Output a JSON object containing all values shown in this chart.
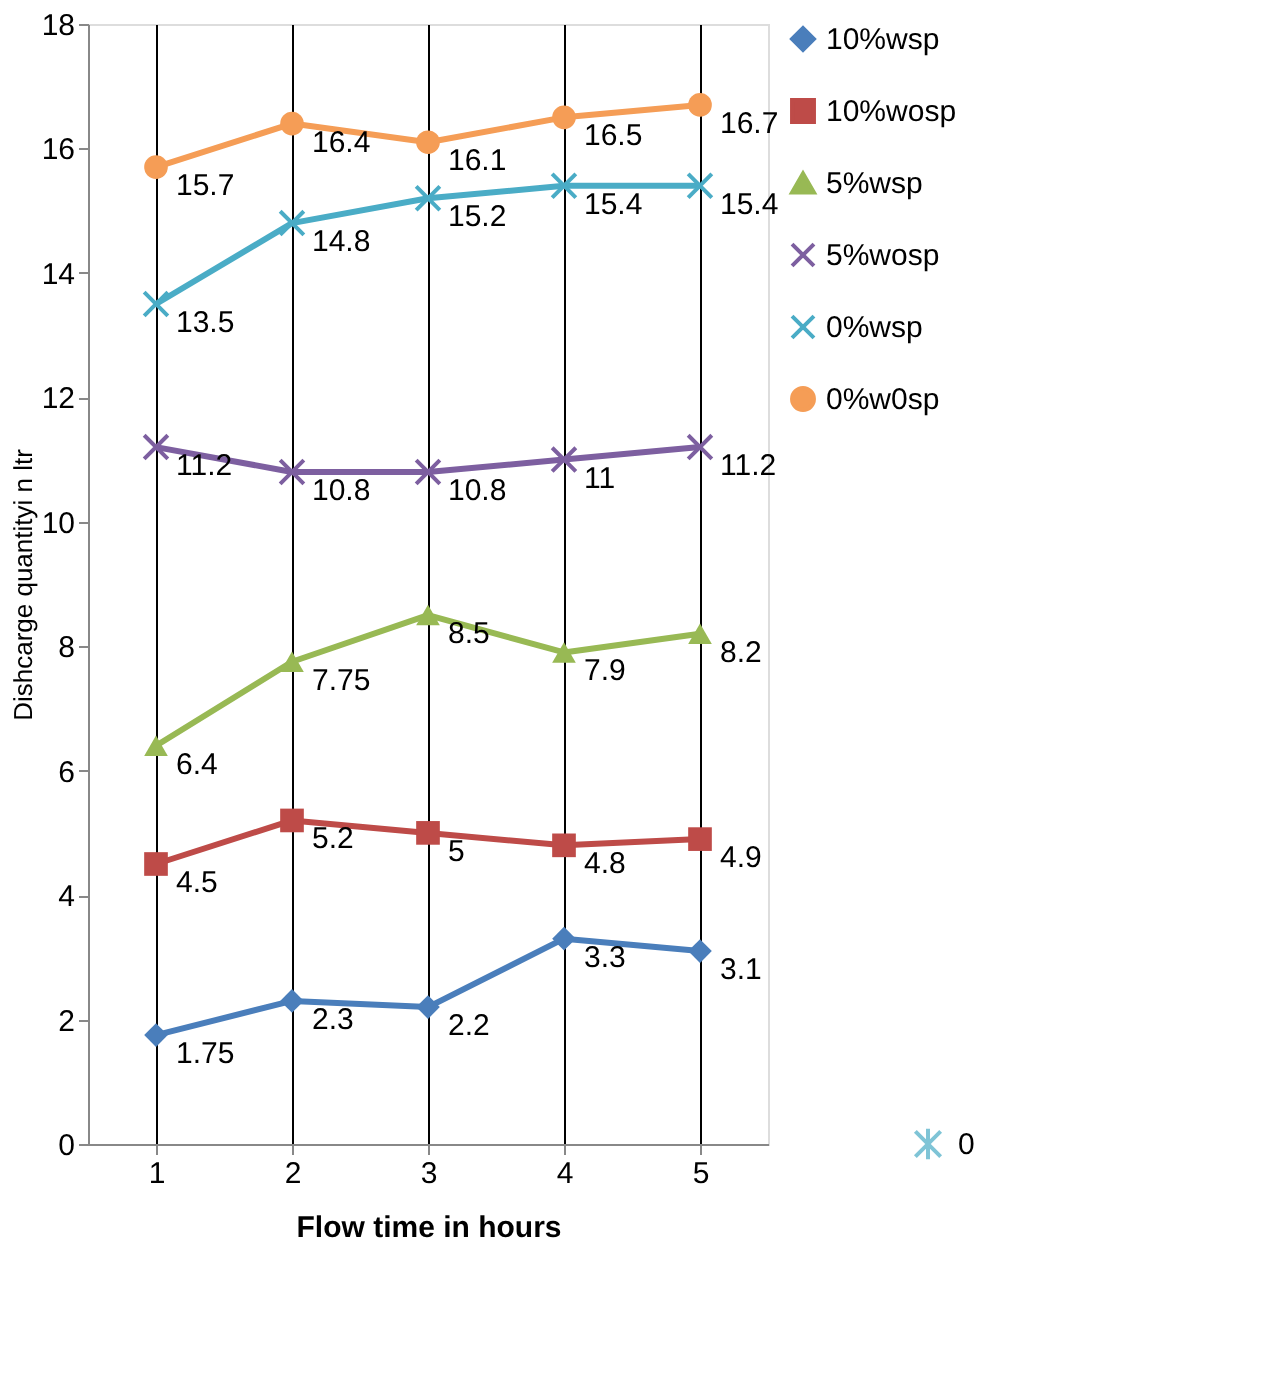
{
  "chart_data": {
    "type": "line",
    "xlabel": "Flow time in hours",
    "ylabel": "Dishcarge quantityi n ltr",
    "categories": [
      "1",
      "2",
      "3",
      "4",
      "5"
    ],
    "series": [
      {
        "name": "10%wsp",
        "color": "#4a7ebb",
        "marker": "diamond",
        "values": [
          1.75,
          2.3,
          2.2,
          3.3,
          3.1
        ]
      },
      {
        "name": "10%wosp",
        "color": "#be4b48",
        "marker": "square",
        "values": [
          4.5,
          5.2,
          5,
          4.8,
          4.9
        ]
      },
      {
        "name": "5%wsp",
        "color": "#98b954",
        "marker": "triangle",
        "values": [
          6.4,
          7.75,
          8.5,
          7.9,
          8.2
        ]
      },
      {
        "name": "5%wosp",
        "color": "#7d5fa0",
        "marker": "cross",
        "values": [
          11.2,
          10.8,
          10.8,
          11,
          11.2
        ]
      },
      {
        "name": "0%wsp",
        "color": "#4aacc6",
        "marker": "cross",
        "values": [
          13.5,
          14.8,
          15.2,
          15.4,
          15.4
        ]
      },
      {
        "name": "0%w0sp",
        "color": "#f59d56",
        "marker": "circle",
        "values": [
          15.7,
          16.4,
          16.1,
          16.5,
          16.7
        ]
      }
    ],
    "ylim": [
      0,
      18
    ],
    "yticks": [
      0,
      2,
      4,
      6,
      8,
      10,
      12,
      14,
      16,
      18
    ],
    "grid": "x",
    "legend": "right",
    "data_labels": true,
    "annotations": [
      "0"
    ]
  }
}
